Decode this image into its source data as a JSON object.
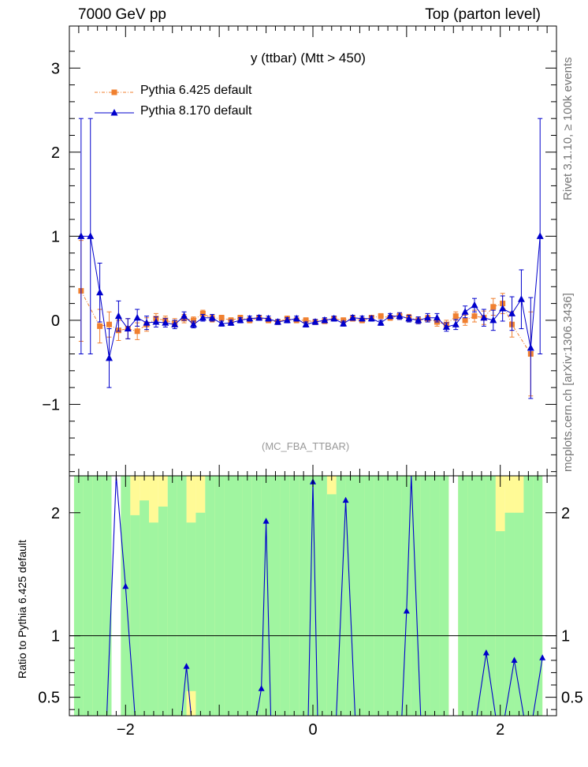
{
  "header": {
    "left": "7000 GeV pp",
    "right": "Top (parton level)"
  },
  "side_labels": {
    "rivet": "Rivet 3.1.10, ≥ 100k events",
    "mcplots": "mcplots.cern.ch [arXiv:1306.3436]"
  },
  "colors": {
    "pythia6": "#f08030",
    "pythia8": "#0000cc",
    "band_green": "#a0f5a0",
    "band_yellow": "#fffa96"
  },
  "chart_data": [
    {
      "type": "line",
      "title": "y (ttbar) (Mtt > 450)",
      "watermark": "(MC_FBA_TTBAR)",
      "xlim": [
        -2.6,
        2.6
      ],
      "ylim": [
        -1.85,
        3.5
      ],
      "yticks": [
        -1,
        0,
        1,
        2,
        3
      ],
      "ytick_labels": [
        "−1",
        "0",
        "1",
        "2",
        "3"
      ],
      "legend": "top-left",
      "x": [
        -2.475,
        -2.375,
        -2.275,
        -2.175,
        -2.075,
        -1.975,
        -1.875,
        -1.775,
        -1.675,
        -1.575,
        -1.475,
        -1.375,
        -1.275,
        -1.175,
        -1.075,
        -0.975,
        -0.875,
        -0.775,
        -0.675,
        -0.575,
        -0.475,
        -0.375,
        -0.275,
        -0.175,
        -0.075,
        0.025,
        0.125,
        0.225,
        0.325,
        0.425,
        0.525,
        0.625,
        0.725,
        0.825,
        0.925,
        1.025,
        1.125,
        1.225,
        1.325,
        1.425,
        1.525,
        1.625,
        1.725,
        1.825,
        1.925,
        2.025,
        2.125,
        2.225,
        2.325,
        2.425,
        2.475
      ],
      "series": [
        {
          "name": "Pythia 6.425 default",
          "values": [
            0.35,
            null,
            -0.07,
            -0.05,
            -0.12,
            -0.1,
            -0.13,
            -0.05,
            0.02,
            0.0,
            -0.03,
            0.02,
            0.0,
            0.08,
            0.02,
            0.03,
            0.0,
            0.03,
            0.0,
            0.03,
            0.0,
            -0.02,
            0.02,
            0.0,
            0.0,
            -0.02,
            -0.01,
            0.02,
            0.0,
            0.02,
            0.0,
            0.03,
            0.05,
            0.03,
            0.05,
            0.03,
            0.0,
            0.02,
            -0.02,
            -0.05,
            0.05,
            0.0,
            0.05,
            0.03,
            0.16,
            0.2,
            -0.05,
            null,
            -0.4,
            null,
            null
          ],
          "errors": [
            0.6,
            null,
            0.2,
            0.15,
            0.12,
            0.12,
            0.1,
            0.08,
            0.06,
            0.05,
            0.05,
            0.05,
            0.04,
            0.04,
            0.04,
            0.03,
            0.03,
            0.03,
            0.03,
            0.03,
            0.03,
            0.03,
            0.03,
            0.03,
            0.03,
            0.03,
            0.03,
            0.03,
            0.03,
            0.03,
            0.03,
            0.03,
            0.03,
            0.03,
            0.04,
            0.04,
            0.04,
            0.04,
            0.05,
            0.05,
            0.05,
            0.06,
            0.07,
            0.08,
            0.1,
            0.12,
            0.15,
            null,
            0.5,
            null,
            null
          ]
        },
        {
          "name": "Pythia 8.170 default",
          "values": [
            1.0,
            1.0,
            0.33,
            -0.45,
            0.05,
            -0.1,
            0.03,
            -0.03,
            -0.02,
            -0.03,
            -0.05,
            0.05,
            -0.05,
            0.03,
            0.03,
            -0.04,
            -0.03,
            0.0,
            0.02,
            0.03,
            0.02,
            -0.02,
            0.0,
            0.02,
            -0.05,
            -0.02,
            0.0,
            0.02,
            -0.04,
            0.03,
            0.02,
            0.02,
            -0.03,
            0.05,
            0.05,
            0.02,
            0.0,
            0.03,
            0.03,
            -0.08,
            -0.05,
            0.1,
            0.18,
            0.03,
            0.0,
            0.14,
            0.08,
            0.25,
            -0.33,
            1.0,
            null
          ],
          "errors": [
            1.4,
            1.4,
            0.35,
            0.35,
            0.18,
            0.12,
            0.1,
            0.08,
            0.06,
            0.05,
            0.05,
            0.05,
            0.04,
            0.04,
            0.04,
            0.03,
            0.03,
            0.03,
            0.03,
            0.03,
            0.03,
            0.03,
            0.03,
            0.03,
            0.03,
            0.03,
            0.03,
            0.03,
            0.03,
            0.03,
            0.03,
            0.03,
            0.03,
            0.03,
            0.04,
            0.04,
            0.04,
            0.05,
            0.05,
            0.05,
            0.06,
            0.07,
            0.08,
            0.1,
            0.12,
            0.15,
            0.2,
            0.35,
            0.6,
            1.4,
            null
          ]
        }
      ]
    },
    {
      "type": "line",
      "ylabel": "Ratio to Pythia 6.425 default",
      "xlim": [
        -2.6,
        2.6
      ],
      "ylim": [
        0.35,
        2.3
      ],
      "yticks": [
        0.5,
        1,
        2
      ],
      "ytick_labels": [
        "0.5",
        "1",
        "2"
      ],
      "xticks": [
        -2,
        0,
        2
      ],
      "xtick_labels": [
        "−2",
        "0",
        "2"
      ],
      "reference_line": 1,
      "band_edges": [
        -2.55,
        -2.45,
        -2.35,
        -2.25,
        -2.15,
        -2.05,
        -1.95,
        -1.85,
        -1.75,
        -1.65,
        -1.55,
        -1.45,
        -1.35,
        -1.25,
        -1.15,
        -1.05,
        -0.95,
        -0.85,
        -0.75,
        -0.65,
        -0.55,
        -0.45,
        -0.35,
        -0.25,
        -0.15,
        -0.05,
        0.05,
        0.15,
        0.25,
        0.35,
        0.45,
        0.55,
        0.65,
        0.75,
        0.85,
        0.95,
        1.05,
        1.15,
        1.25,
        1.35,
        1.45,
        1.55,
        1.65,
        1.75,
        1.85,
        1.95,
        2.05,
        2.15,
        2.25,
        2.35,
        2.45,
        2.55
      ],
      "band_green": [
        [
          0.35,
          2.3
        ],
        [
          0.35,
          2.3
        ],
        [
          0.35,
          2.3
        ],
        [
          0.35,
          2.3
        ],
        null,
        [
          0.35,
          2.3
        ],
        [
          0.35,
          1.98
        ],
        [
          0.35,
          2.1
        ],
        [
          0.35,
          1.92
        ],
        [
          0.35,
          2.05
        ],
        [
          0.35,
          2.3
        ],
        [
          0.35,
          2.3
        ],
        [
          0.55,
          1.92
        ],
        [
          0.35,
          2.0
        ],
        [
          0.35,
          2.3
        ],
        [
          0.35,
          2.3
        ],
        [
          0.35,
          2.3
        ],
        [
          0.35,
          2.3
        ],
        [
          0.35,
          2.3
        ],
        [
          0.35,
          2.3
        ],
        [
          0.35,
          2.3
        ],
        [
          0.35,
          2.3
        ],
        [
          0.35,
          2.3
        ],
        [
          0.35,
          2.3
        ],
        [
          0.35,
          2.3
        ],
        [
          0.35,
          2.3
        ],
        [
          0.35,
          2.3
        ],
        [
          0.35,
          2.15
        ],
        [
          0.35,
          2.3
        ],
        [
          0.35,
          2.3
        ],
        [
          0.35,
          2.3
        ],
        [
          0.35,
          2.3
        ],
        [
          0.35,
          2.3
        ],
        [
          0.35,
          2.3
        ],
        [
          0.35,
          2.3
        ],
        [
          0.35,
          2.3
        ],
        [
          0.35,
          2.3
        ],
        [
          0.35,
          2.3
        ],
        [
          0.35,
          2.3
        ],
        [
          0.35,
          2.3
        ],
        null,
        [
          0.35,
          2.3
        ],
        [
          0.35,
          2.3
        ],
        [
          0.35,
          2.3
        ],
        [
          0.35,
          2.3
        ],
        [
          0.35,
          1.85
        ],
        [
          0.35,
          2.0
        ],
        [
          0.35,
          2.0
        ],
        [
          0.35,
          2.3
        ],
        [
          0.35,
          2.3
        ],
        null
      ],
      "band_yellow": [
        [
          0.35,
          2.3
        ],
        [
          0.35,
          2.3
        ],
        [
          0.35,
          2.3
        ],
        [
          0.35,
          2.3
        ],
        null,
        [
          0.35,
          2.3
        ],
        [
          0.35,
          2.3
        ],
        [
          0.35,
          2.3
        ],
        [
          0.35,
          2.3
        ],
        [
          0.35,
          2.3
        ],
        [
          0.35,
          2.3
        ],
        [
          0.35,
          2.3
        ],
        [
          0.35,
          2.3
        ],
        [
          0.35,
          2.3
        ],
        [
          0.35,
          2.3
        ],
        [
          0.35,
          2.3
        ],
        [
          0.35,
          2.3
        ],
        [
          0.35,
          2.3
        ],
        [
          0.35,
          2.3
        ],
        [
          0.35,
          2.3
        ],
        [
          0.35,
          2.3
        ],
        [
          0.35,
          2.3
        ],
        [
          0.35,
          2.3
        ],
        [
          0.35,
          2.3
        ],
        [
          0.35,
          2.3
        ],
        [
          0.35,
          2.3
        ],
        [
          0.35,
          2.3
        ],
        [
          0.35,
          2.3
        ],
        [
          0.35,
          2.3
        ],
        [
          0.35,
          2.3
        ],
        [
          0.35,
          2.3
        ],
        [
          0.35,
          2.3
        ],
        [
          0.35,
          2.3
        ],
        [
          0.35,
          2.3
        ],
        [
          0.35,
          2.3
        ],
        [
          0.35,
          2.3
        ],
        [
          0.35,
          2.3
        ],
        [
          0.35,
          2.3
        ],
        [
          0.35,
          2.3
        ],
        [
          0.35,
          2.3
        ],
        null,
        [
          0.35,
          2.3
        ],
        [
          0.35,
          2.3
        ],
        [
          0.35,
          2.3
        ],
        [
          0.35,
          2.3
        ],
        [
          0.35,
          2.3
        ],
        [
          0.35,
          2.3
        ],
        [
          0.35,
          2.3
        ],
        [
          0.35,
          2.3
        ],
        [
          0.35,
          2.3
        ],
        null
      ],
      "series": [
        {
          "name": "Pythia 8.170 default",
          "x": [
            -2.3,
            -2.2,
            -2.1,
            -2.0,
            -1.9,
            -1.8,
            -1.7,
            -1.6,
            -1.5,
            -1.4,
            -1.35,
            -1.3,
            -1.2,
            -1.1,
            -1.0,
            -0.9,
            -0.8,
            -0.7,
            -0.6,
            -0.55,
            -0.5,
            -0.45,
            -0.4,
            -0.3,
            -0.2,
            -0.1,
            -0.05,
            0.0,
            0.05,
            0.15,
            0.25,
            0.35,
            0.45,
            0.55,
            0.65,
            0.75,
            0.85,
            0.95,
            1.0,
            1.05,
            1.15,
            1.25,
            1.35,
            1.45,
            1.55,
            1.65,
            1.75,
            1.85,
            1.95,
            2.05,
            2.15,
            2.25,
            2.35,
            2.45
          ],
          "values": [
            0.35,
            0.35,
            2.3,
            1.4,
            0.35,
            0.35,
            0.35,
            0.35,
            0.35,
            0.35,
            0.75,
            0.35,
            0.35,
            0.35,
            0.35,
            0.35,
            0.35,
            0.35,
            0.35,
            0.57,
            1.93,
            0.35,
            0.35,
            0.35,
            0.35,
            0.35,
            0.35,
            2.25,
            0.35,
            0.35,
            0.35,
            2.1,
            0.35,
            0.35,
            0.35,
            0.35,
            0.35,
            0.35,
            1.2,
            2.3,
            0.35,
            0.35,
            0.35,
            0.35,
            0.35,
            0.35,
            0.35,
            0.86,
            0.35,
            0.35,
            0.8,
            0.35,
            0.35,
            0.82
          ]
        }
      ]
    }
  ]
}
